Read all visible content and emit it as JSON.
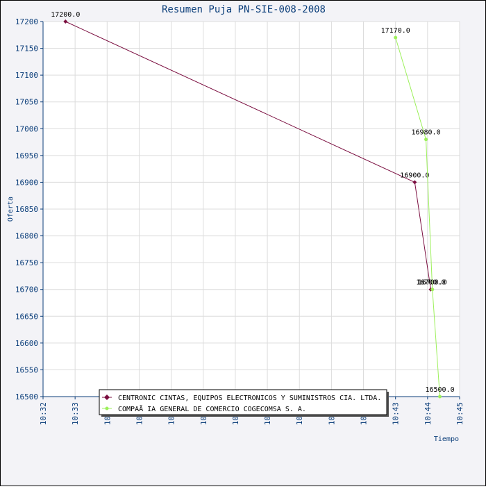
{
  "chart_data": {
    "type": "line",
    "title": "Resumen Puja PN-SIE-008-2008",
    "xlabel": "Tiempo",
    "ylabel": "Oferta",
    "ylim": [
      16500,
      17200
    ],
    "yticks": [
      17200,
      17150,
      17100,
      17050,
      17000,
      16950,
      16900,
      16850,
      16800,
      16750,
      16700,
      16650,
      16600,
      16550,
      16500
    ],
    "xlim": [
      "10:32",
      "10:45"
    ],
    "xticks": [
      "10:32",
      "10:33",
      "10:34",
      "10:35",
      "10:36",
      "10:37",
      "10:38",
      "10:39",
      "10:40",
      "10:41",
      "10:42",
      "10:43",
      "10:44",
      "10:45"
    ],
    "grid": true,
    "legend_position": "bottom",
    "series": [
      {
        "name": "CENTRONIC CINTAS, EQUIPOS ELECTRONICOS Y SUMINISTROS CIA. LTDA.",
        "color": "#7a0d3f",
        "marker": "diamond",
        "x": [
          "10:32:42",
          "10:43:36",
          "10:44:06"
        ],
        "y": [
          17200,
          16900,
          16700
        ],
        "labels": [
          "17200.0",
          "16900.0",
          "16700.0"
        ]
      },
      {
        "name": "COMPAÃ IA GENERAL DE COMERCIO COGECOMSA S. A.",
        "color": "#9cf05a",
        "marker": "dot",
        "x": [
          "10:43:00",
          "10:43:57",
          "10:44:09",
          "10:44:23"
        ],
        "y": [
          17170,
          16980,
          16700,
          16500
        ],
        "labels": [
          "17170.0",
          "16980.0",
          "16700.0",
          "16500.0"
        ]
      }
    ]
  }
}
